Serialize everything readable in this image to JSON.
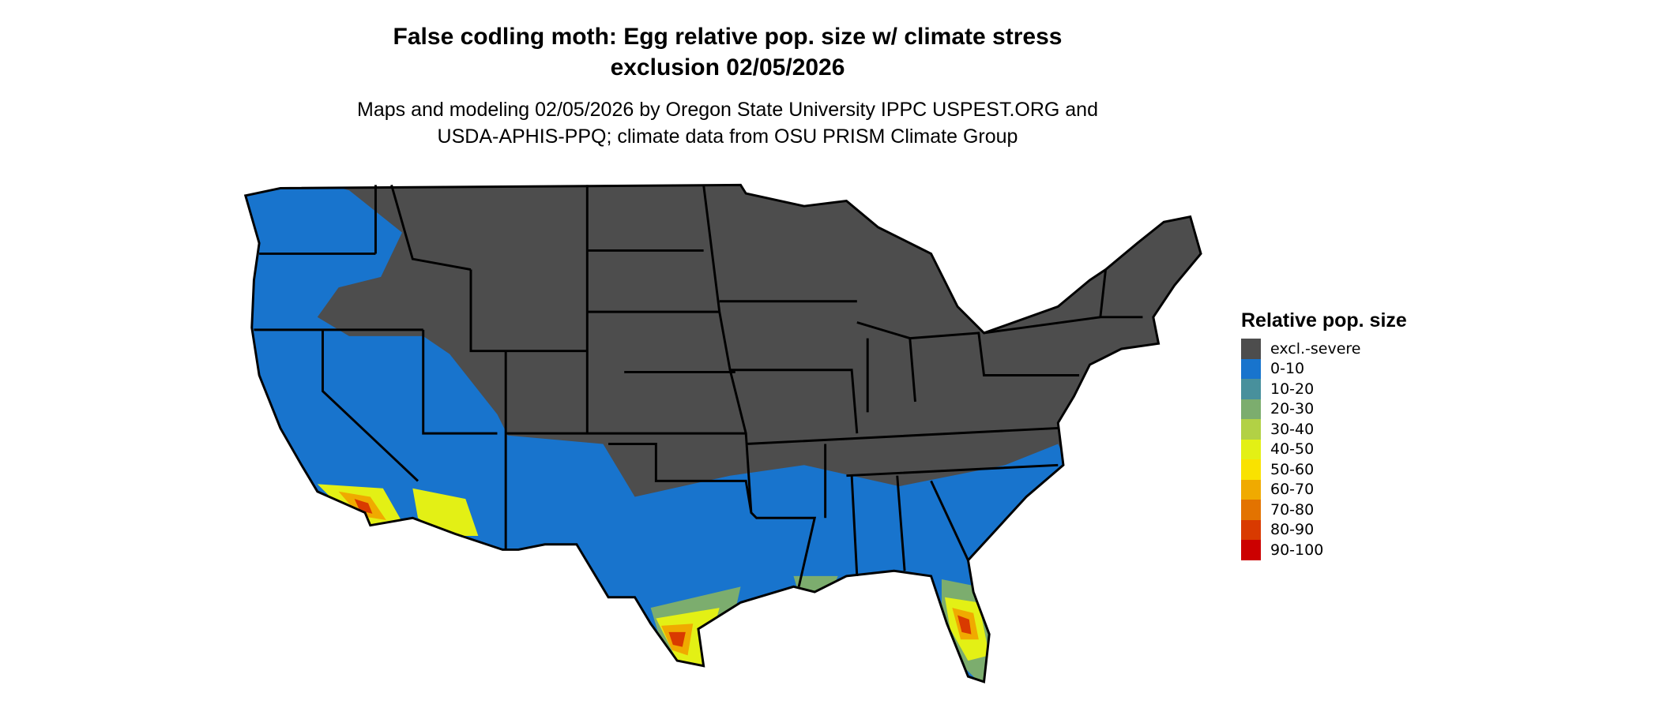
{
  "title": {
    "line1": "False codling moth: Egg relative pop. size w/ climate stress",
    "line2": "exclusion 02/05/2026"
  },
  "subtitle": {
    "line1": "Maps and modeling 02/05/2026 by Oregon State University IPPC USPEST.ORG and",
    "line2": "USDA-APHIS-PPQ; climate data from OSU PRISM Climate Group"
  },
  "legend": {
    "title": "Relative pop. size",
    "items": [
      {
        "label": "excl.-severe",
        "color": "#4d4d4d"
      },
      {
        "label": "0-10",
        "color": "#1874cd"
      },
      {
        "label": "10-20",
        "color": "#48909c"
      },
      {
        "label": "20-30",
        "color": "#7cad6e"
      },
      {
        "label": "30-40",
        "color": "#b2d145"
      },
      {
        "label": "40-50",
        "color": "#e3f015"
      },
      {
        "label": "50-60",
        "color": "#f9e200"
      },
      {
        "label": "60-70",
        "color": "#f0aa00"
      },
      {
        "label": "70-80",
        "color": "#e37300"
      },
      {
        "label": "80-90",
        "color": "#d93a00"
      },
      {
        "label": "90-100",
        "color": "#cc0000"
      }
    ]
  }
}
